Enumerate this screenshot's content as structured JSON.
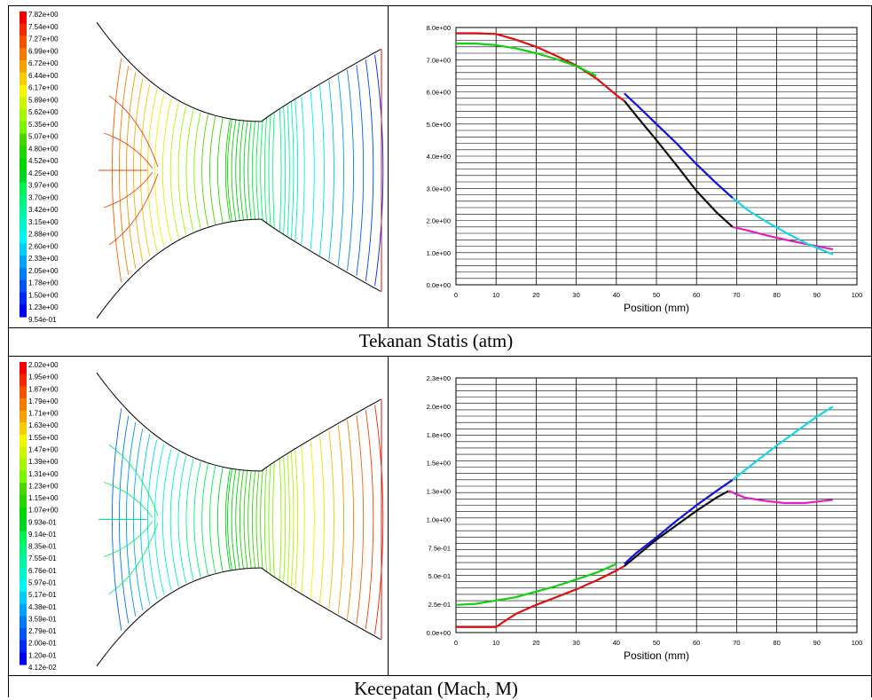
{
  "captions": {
    "top": "Tekanan Statis (atm)",
    "bottom": "Kecepatan (Mach, M)"
  },
  "legends": {
    "pressure": [
      "7.82e+00",
      "7.54e+00",
      "7.27e+00",
      "6.99e+00",
      "6.72e+00",
      "6.44e+00",
      "6.17e+00",
      "5.89e+00",
      "5.62e+00",
      "5.35e+00",
      "5.07e+00",
      "4.80e+00",
      "4.52e+00",
      "4.25e+00",
      "3.97e+00",
      "3.70e+00",
      "3.42e+00",
      "3.15e+00",
      "2.88e+00",
      "2.60e+00",
      "2.33e+00",
      "2.05e+00",
      "1.78e+00",
      "1.50e+00",
      "1.23e+00",
      "9.54e-01"
    ],
    "mach": [
      "2.02e+00",
      "1.95e+00",
      "1.87e+00",
      "1.79e+00",
      "1.71e+00",
      "1.63e+00",
      "1.55e+00",
      "1.47e+00",
      "1.39e+00",
      "1.31e+00",
      "1.23e+00",
      "1.15e+00",
      "1.07e+00",
      "9.93e-01",
      "9.14e-01",
      "8.35e-01",
      "7.55e-01",
      "6.76e-01",
      "5.97e-01",
      "5.17e-01",
      "4.38e-01",
      "3.59e-01",
      "2.79e-01",
      "2.00e-01",
      "1.20e-01",
      "4.12e-02"
    ]
  },
  "chart_data": [
    {
      "type": "line",
      "xlabel": "Position (mm)",
      "xlim": [
        0,
        100
      ],
      "ylim": [
        0,
        8
      ],
      "xticks": [
        "0",
        "10",
        "20",
        "30",
        "40",
        "50",
        "60",
        "70",
        "80",
        "90",
        "100"
      ],
      "yticks": [
        "0.0e+00",
        "1.0e+00",
        "2.0e+00",
        "3.0e+00",
        "4.0e+00",
        "5.0e+00",
        "6.0e+00",
        "7.0e+00",
        "8.0e+00"
      ],
      "series": [
        {
          "color": "#e01010",
          "x": [
            0,
            5,
            10,
            15,
            20,
            25,
            30,
            35,
            40,
            42
          ],
          "y": [
            7.82,
            7.82,
            7.8,
            7.62,
            7.4,
            7.12,
            6.82,
            6.42,
            5.9,
            5.72
          ]
        },
        {
          "color": "#10d010",
          "x": [
            0,
            5,
            10,
            15,
            20,
            25,
            30,
            35
          ],
          "y": [
            7.5,
            7.5,
            7.45,
            7.35,
            7.2,
            7.02,
            6.8,
            6.5
          ]
        },
        {
          "color": "#1010e0",
          "x": [
            42,
            45,
            50,
            55,
            60,
            65,
            69
          ],
          "y": [
            5.95,
            5.6,
            5.0,
            4.4,
            3.75,
            3.15,
            2.7
          ]
        },
        {
          "color": "#111111",
          "x": [
            42,
            45,
            50,
            55,
            60,
            65,
            69
          ],
          "y": [
            5.72,
            5.25,
            4.5,
            3.72,
            2.92,
            2.25,
            1.8
          ]
        },
        {
          "color": "#e020c0",
          "x": [
            69,
            73,
            78,
            83,
            88,
            94
          ],
          "y": [
            1.8,
            1.68,
            1.52,
            1.38,
            1.25,
            1.1
          ]
        },
        {
          "color": "#10d8e8",
          "x": [
            69,
            73,
            78,
            83,
            88,
            94
          ],
          "y": [
            2.7,
            2.3,
            1.92,
            1.57,
            1.25,
            0.95
          ]
        }
      ]
    },
    {
      "type": "line",
      "xlabel": "Position (mm)",
      "xlim": [
        0,
        100
      ],
      "ylim": [
        0,
        2.3
      ],
      "xticks": [
        "0",
        "10",
        "20",
        "30",
        "40",
        "50",
        "60",
        "70",
        "80",
        "90",
        "100"
      ],
      "yticks": [
        "0.0e+00",
        "2.5e-01",
        "5.0e-01",
        "7.5e-01",
        "1.0e+00",
        "1.3e+00",
        "1.5e+00",
        "1.8e+00",
        "2.0e+00",
        "2.3e+00"
      ],
      "series": [
        {
          "color": "#e01010",
          "x": [
            0,
            5,
            10,
            12,
            15,
            20,
            25,
            30,
            35,
            40,
            42
          ],
          "y": [
            0.05,
            0.05,
            0.05,
            0.1,
            0.17,
            0.25,
            0.32,
            0.39,
            0.47,
            0.56,
            0.6
          ]
        },
        {
          "color": "#10d010",
          "x": [
            0,
            5,
            10,
            15,
            20,
            25,
            30,
            35,
            40
          ],
          "y": [
            0.25,
            0.26,
            0.29,
            0.32,
            0.37,
            0.42,
            0.48,
            0.54,
            0.62
          ]
        },
        {
          "color": "#1010e0",
          "x": [
            42,
            45,
            50,
            55,
            60,
            65,
            69
          ],
          "y": [
            0.62,
            0.72,
            0.86,
            1.01,
            1.15,
            1.28,
            1.38
          ]
        },
        {
          "color": "#111111",
          "x": [
            42,
            45,
            50,
            55,
            60,
            65,
            68
          ],
          "y": [
            0.6,
            0.69,
            0.84,
            0.97,
            1.1,
            1.22,
            1.28
          ]
        },
        {
          "color": "#10d8e8",
          "x": [
            69,
            75,
            80,
            85,
            90,
            94
          ],
          "y": [
            1.38,
            1.55,
            1.69,
            1.82,
            1.95,
            2.04
          ]
        },
        {
          "color": "#e020c0",
          "x": [
            68,
            72,
            77,
            82,
            87,
            94
          ],
          "y": [
            1.28,
            1.22,
            1.19,
            1.17,
            1.17,
            1.2
          ]
        }
      ]
    }
  ]
}
